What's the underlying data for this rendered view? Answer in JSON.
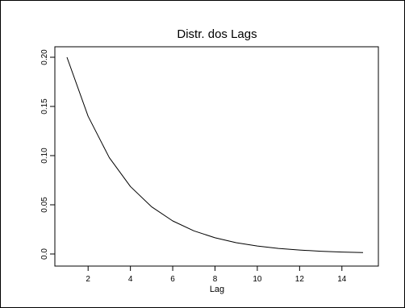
{
  "chart_data": {
    "type": "line",
    "title": "Distr. dos Lags",
    "xlabel": "Lag",
    "ylabel": "",
    "xlim": [
      1,
      15
    ],
    "ylim": [
      0,
      0.2
    ],
    "x_ticks": [
      2,
      4,
      6,
      8,
      10,
      12,
      14
    ],
    "y_ticks": [
      0.0,
      0.05,
      0.1,
      0.15,
      0.2
    ],
    "x_tick_labels": [
      "2",
      "4",
      "6",
      "8",
      "10",
      "12",
      "14"
    ],
    "y_tick_labels": [
      "0.0",
      "0.05",
      "0.10",
      "0.15",
      "0.20"
    ],
    "grid": false,
    "legend": "none",
    "line_color": "#000000",
    "series": [
      {
        "x": [
          1,
          2,
          3,
          4,
          5,
          6,
          7,
          8,
          9,
          10,
          11,
          12,
          13,
          14,
          15
        ],
        "values": [
          0.2,
          0.14,
          0.098,
          0.0686,
          0.048,
          0.0336,
          0.0235,
          0.0165,
          0.0115,
          0.0081,
          0.0056,
          0.004,
          0.0028,
          0.0019,
          0.0014
        ]
      }
    ]
  }
}
